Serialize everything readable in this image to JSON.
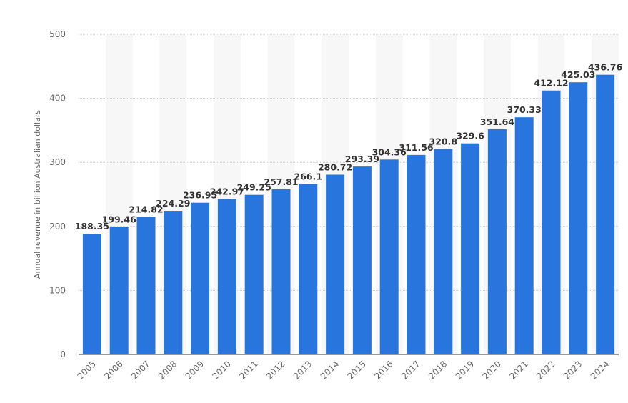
{
  "chart_data": {
    "type": "bar",
    "title": "",
    "xlabel": "",
    "ylabel": "Annual revenue in billion Australian dollars",
    "ylim": [
      0,
      500
    ],
    "yticks": [
      0,
      100,
      200,
      300,
      400,
      500
    ],
    "grid": true,
    "bar_color": "#2876dd",
    "categories": [
      "2005",
      "2006",
      "2007",
      "2008",
      "2009",
      "2010",
      "2011",
      "2012",
      "2013",
      "2014",
      "2015",
      "2016",
      "2017",
      "2018",
      "2019",
      "2020",
      "2021",
      "2022",
      "2023",
      "2024"
    ],
    "values": [
      188.35,
      199.46,
      214.82,
      224.29,
      236.95,
      242.97,
      249.25,
      257.81,
      266.1,
      280.72,
      293.39,
      304.36,
      311.56,
      320.8,
      329.6,
      351.64,
      370.33,
      412.12,
      425.03,
      436.76
    ],
    "labels": [
      "188.35",
      "199.46",
      "214.82",
      "224.29",
      "236.95",
      "242.97",
      "249.25",
      "257.81",
      "266.1",
      "280.72",
      "293.39",
      "304.36",
      "311.56",
      "320.8",
      "329.6",
      "351.64",
      "370.33",
      "412.12",
      "425.03",
      "436.76"
    ]
  }
}
